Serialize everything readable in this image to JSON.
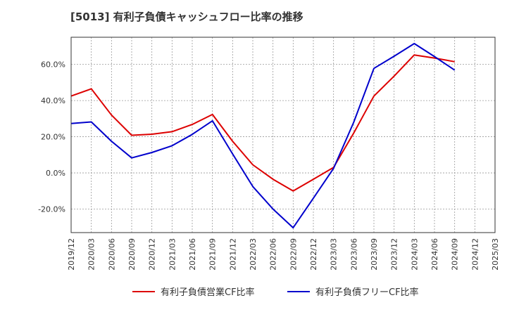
{
  "chart_data": {
    "type": "line",
    "title": "[5013]  有利子負債キャッシュフロー比率の推移",
    "xlabel": "",
    "ylabel": "",
    "categories": [
      "2019/12",
      "2020/03",
      "2020/06",
      "2020/09",
      "2020/12",
      "2021/03",
      "2021/06",
      "2021/09",
      "2021/12",
      "2022/03",
      "2022/06",
      "2022/09",
      "2022/12",
      "2023/03",
      "2023/06",
      "2023/09",
      "2023/12",
      "2024/03",
      "2024/06",
      "2024/09",
      "2024/12",
      "2025/03"
    ],
    "y_ticks": [
      "-20.0%",
      "0.0%",
      "20.0%",
      "40.0%",
      "60.0%"
    ],
    "y_tick_values": [
      -20,
      0,
      20,
      40,
      60
    ],
    "ylim": [
      -33,
      75
    ],
    "grid": true,
    "legend_position": "bottom",
    "series": [
      {
        "name": "有利子負債営業CF比率",
        "color": "#dd0000",
        "values": [
          42.5,
          46.5,
          32.0,
          20.8,
          21.4,
          22.8,
          26.8,
          32.3,
          17.5,
          4.5,
          -3.5,
          -10.0,
          -3.5,
          3.0,
          22.0,
          42.5,
          53.5,
          65.2,
          63.5,
          61.5,
          null,
          null
        ]
      },
      {
        "name": "有利子負債フリーCF比率",
        "color": "#0000cc",
        "values": [
          27.3,
          28.2,
          17.5,
          8.3,
          11.3,
          15.0,
          21.3,
          28.8,
          10.5,
          -7.5,
          -20.0,
          -30.3,
          -14.0,
          2.5,
          28.0,
          57.8,
          64.5,
          71.5,
          64.3,
          56.8,
          null,
          null
        ]
      }
    ]
  }
}
